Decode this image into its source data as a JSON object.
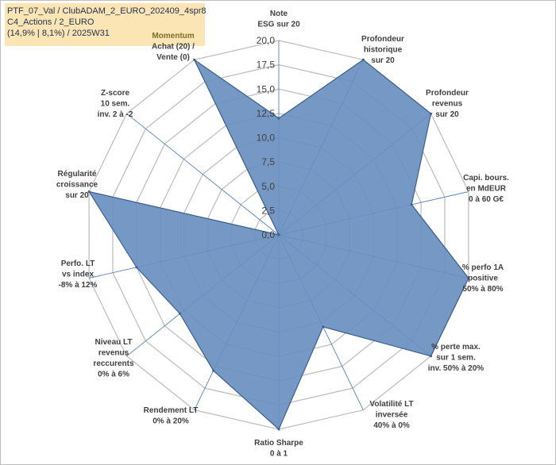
{
  "header": {
    "line1": "PTF_07_Val / ClubADAM_2_EURO_202409_4spr8",
    "line2": "C4_Actions / 2_EURO",
    "line3": "(14,9% | 8,1%) / 2025W31"
  },
  "chart_data": {
    "type": "radar",
    "rmax": 20,
    "ticks": [
      "0,0",
      "2,5",
      "5,0",
      "7,5",
      "10,0",
      "12,5",
      "15,0",
      "17,5",
      "20,0"
    ],
    "grid": true,
    "axes": [
      {
        "label": [
          "Note",
          "ESG sur 20"
        ],
        "value": 12
      },
      {
        "label": [
          "Profondeur",
          "historique",
          "sur 20"
        ],
        "value": 20
      },
      {
        "label": [
          "Profondeur",
          "revenus",
          "sur 20"
        ],
        "value": 20
      },
      {
        "label": [
          "Capi. bours.",
          "en MdEUR",
          "0 à 60 G€"
        ],
        "value": 14
      },
      {
        "label": [
          "% perfo 1A",
          "positive",
          "50% à 80%"
        ],
        "value": 20
      },
      {
        "label": [
          "% perte max.",
          "sur 1 sem.",
          "inv. 50% à 20%"
        ],
        "value": 20
      },
      {
        "label": [
          "Volatilité LT",
          "inversée",
          "40% à 0%"
        ],
        "value": 10.5
      },
      {
        "label": [
          "Ratio Sharpe",
          "0 à 1"
        ],
        "value": 20
      },
      {
        "label": [
          "Rendement LT",
          "0% à 20%"
        ],
        "value": 15.5
      },
      {
        "label": [
          "Niveau LT",
          "revenus",
          "reccurents",
          "0% à 6%"
        ],
        "value": 13
      },
      {
        "label": [
          "Perfo. LT",
          "vs index",
          "-8% à 12%"
        ],
        "value": 15
      },
      {
        "label": [
          "Régularité",
          "croissance",
          "sur 20"
        ],
        "value": 20
      },
      {
        "label": [
          "Z-score",
          "10 sem.",
          "inv. 2 à -2"
        ],
        "value": 0
      },
      {
        "label": [
          "Momentum",
          "Achat (20) /",
          "Vente (0)"
        ],
        "value": 20
      }
    ],
    "colors": {
      "fill": "#6a8fbf",
      "stroke": "#3b5f8f",
      "grid": "#bfbfbf",
      "spoke": "#4f81bd",
      "title_bg": "#fbe5b4"
    }
  }
}
